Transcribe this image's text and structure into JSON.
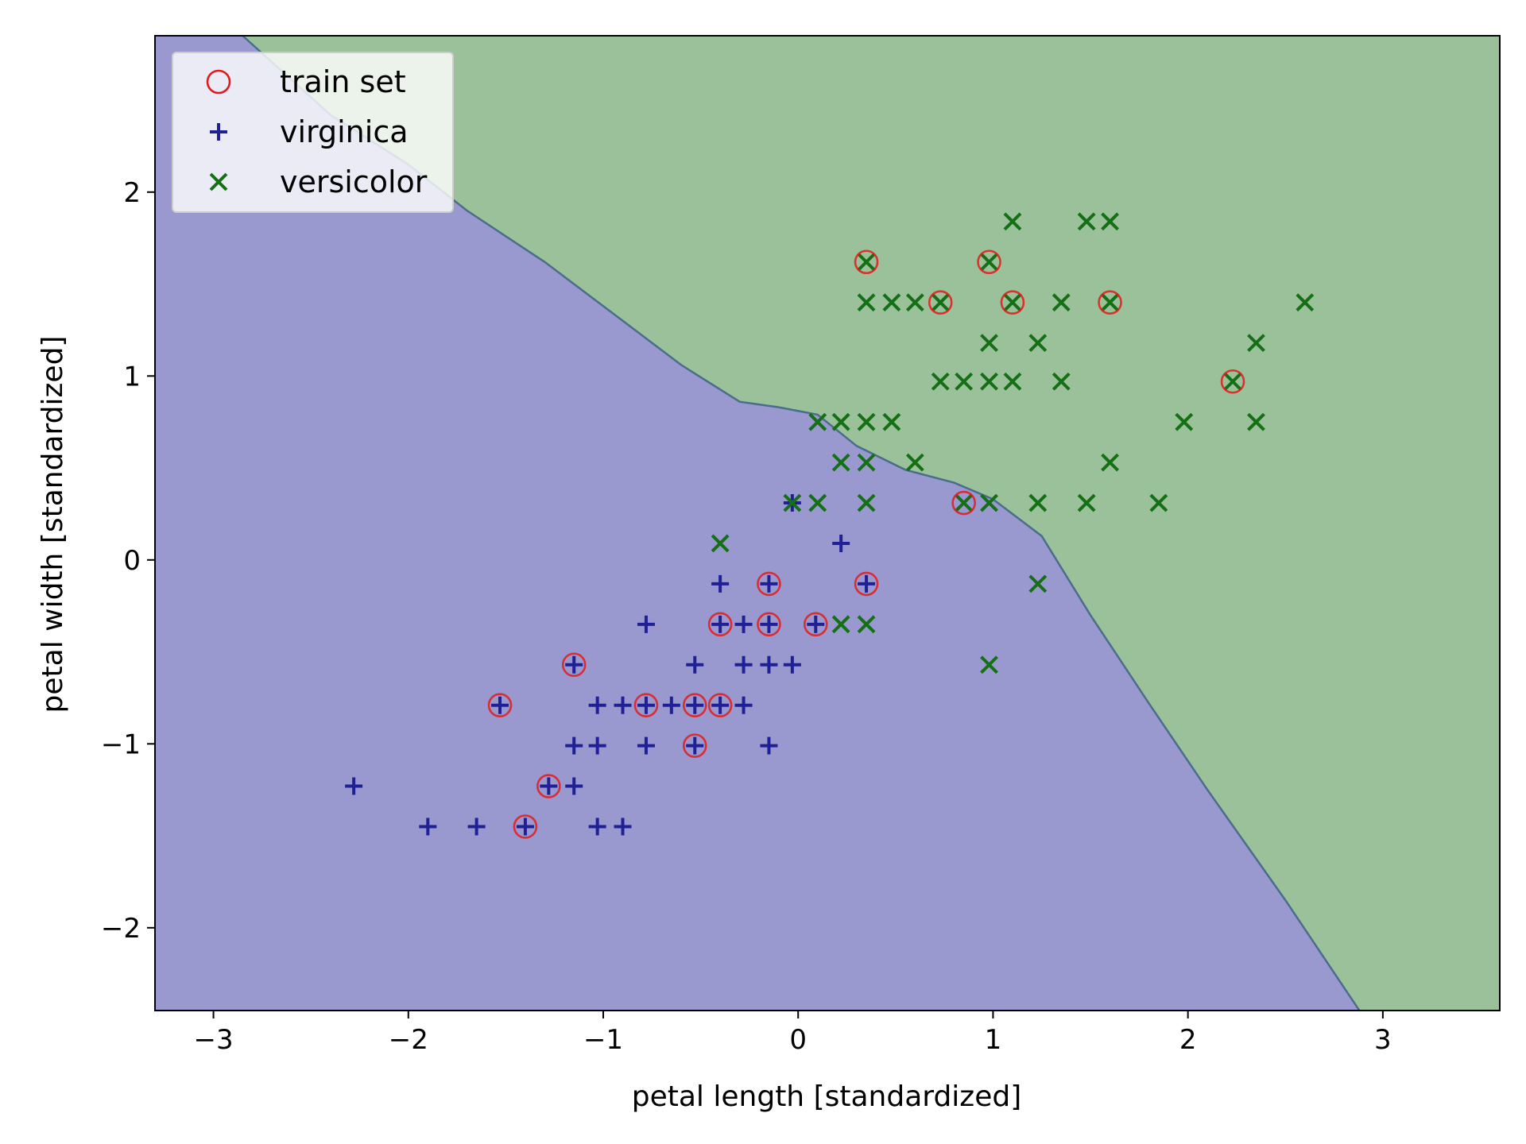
{
  "chart_data": {
    "type": "scatter",
    "xlabel": "petal length [standardized]",
    "ylabel": "petal width [standardized]",
    "xlim": [
      -3.3,
      3.6
    ],
    "ylim": [
      -2.45,
      2.85
    ],
    "xticks": [
      -3,
      -2,
      -1,
      0,
      1,
      2,
      3
    ],
    "yticks": [
      -2,
      -1,
      0,
      1,
      2
    ],
    "tick_labels_x": [
      "−3",
      "−2",
      "−1",
      "0",
      "1",
      "2",
      "3"
    ],
    "tick_labels_y": [
      "−2",
      "−1",
      "0",
      "1",
      "2"
    ],
    "grid": false,
    "legend_position": "top-left",
    "decision_regions": [
      {
        "class": "virginica",
        "color": "#9999cf",
        "boundary": [
          [
            -2.85,
            2.85
          ],
          [
            -2.4,
            2.42
          ],
          [
            -2.0,
            2.15
          ],
          [
            -1.7,
            1.9
          ],
          [
            -1.3,
            1.62
          ],
          [
            -0.9,
            1.3
          ],
          [
            -0.6,
            1.06
          ],
          [
            -0.3,
            0.86
          ],
          [
            -0.1,
            0.83
          ],
          [
            0.1,
            0.79
          ],
          [
            0.3,
            0.62
          ],
          [
            0.55,
            0.49
          ],
          [
            0.8,
            0.42
          ],
          [
            1.0,
            0.33
          ],
          [
            1.25,
            0.13
          ],
          [
            1.5,
            -0.3
          ],
          [
            1.8,
            -0.78
          ],
          [
            2.1,
            -1.25
          ],
          [
            2.5,
            -1.85
          ],
          [
            2.88,
            -2.45
          ]
        ]
      },
      {
        "class": "versicolor",
        "color": "#9ac19a"
      }
    ],
    "series": [
      {
        "name": "virginica",
        "marker": "+",
        "color": "#1f1f96",
        "points": [
          [
            -0.03,
            0.31
          ],
          [
            0.22,
            0.09
          ],
          [
            -0.4,
            -0.13
          ],
          [
            -0.15,
            -0.13
          ],
          [
            0.35,
            -0.13
          ],
          [
            -0.78,
            -0.35
          ],
          [
            -0.4,
            -0.35
          ],
          [
            -0.28,
            -0.35
          ],
          [
            -0.15,
            -0.35
          ],
          [
            0.09,
            -0.35
          ],
          [
            -1.15,
            -0.57
          ],
          [
            -0.53,
            -0.57
          ],
          [
            -0.28,
            -0.57
          ],
          [
            -0.15,
            -0.57
          ],
          [
            -0.03,
            -0.57
          ],
          [
            -1.53,
            -0.79
          ],
          [
            -1.03,
            -0.79
          ],
          [
            -0.9,
            -0.79
          ],
          [
            -0.78,
            -0.79
          ],
          [
            -0.65,
            -0.79
          ],
          [
            -0.53,
            -0.79
          ],
          [
            -0.4,
            -0.79
          ],
          [
            -0.28,
            -0.79
          ],
          [
            -1.15,
            -1.01
          ],
          [
            -1.03,
            -1.01
          ],
          [
            -0.78,
            -1.01
          ],
          [
            -0.53,
            -1.01
          ],
          [
            -0.15,
            -1.01
          ],
          [
            -2.28,
            -1.23
          ],
          [
            -1.28,
            -1.23
          ],
          [
            -1.15,
            -1.23
          ],
          [
            -1.9,
            -1.45
          ],
          [
            -1.65,
            -1.45
          ],
          [
            -1.4,
            -1.45
          ],
          [
            -1.03,
            -1.45
          ],
          [
            -0.9,
            -1.45
          ]
        ]
      },
      {
        "name": "versicolor",
        "marker": "x",
        "color": "#157015",
        "points": [
          [
            1.1,
            1.84
          ],
          [
            1.48,
            1.84
          ],
          [
            1.6,
            1.84
          ],
          [
            0.35,
            1.62
          ],
          [
            0.98,
            1.62
          ],
          [
            0.35,
            1.4
          ],
          [
            0.48,
            1.4
          ],
          [
            0.6,
            1.4
          ],
          [
            0.73,
            1.4
          ],
          [
            1.1,
            1.4
          ],
          [
            1.35,
            1.4
          ],
          [
            1.6,
            1.4
          ],
          [
            2.6,
            1.4
          ],
          [
            0.98,
            1.18
          ],
          [
            1.23,
            1.18
          ],
          [
            2.35,
            1.18
          ],
          [
            0.73,
            0.97
          ],
          [
            0.85,
            0.97
          ],
          [
            0.98,
            0.97
          ],
          [
            1.1,
            0.97
          ],
          [
            1.35,
            0.97
          ],
          [
            2.23,
            0.97
          ],
          [
            0.1,
            0.75
          ],
          [
            0.22,
            0.75
          ],
          [
            0.35,
            0.75
          ],
          [
            0.48,
            0.75
          ],
          [
            1.98,
            0.75
          ],
          [
            2.35,
            0.75
          ],
          [
            0.22,
            0.53
          ],
          [
            0.35,
            0.53
          ],
          [
            0.6,
            0.53
          ],
          [
            1.6,
            0.53
          ],
          [
            -0.03,
            0.31
          ],
          [
            0.1,
            0.31
          ],
          [
            0.35,
            0.31
          ],
          [
            0.85,
            0.31
          ],
          [
            0.98,
            0.31
          ],
          [
            1.23,
            0.31
          ],
          [
            1.48,
            0.31
          ],
          [
            1.85,
            0.31
          ],
          [
            -0.4,
            0.09
          ],
          [
            1.23,
            -0.13
          ],
          [
            0.22,
            -0.35
          ],
          [
            0.35,
            -0.35
          ],
          [
            0.98,
            -0.57
          ]
        ]
      },
      {
        "name": "train set",
        "marker": "o",
        "color": "#e41a1a",
        "points": [
          [
            0.35,
            1.62
          ],
          [
            0.98,
            1.62
          ],
          [
            0.73,
            1.4
          ],
          [
            1.1,
            1.4
          ],
          [
            1.6,
            1.4
          ],
          [
            2.23,
            0.97
          ],
          [
            0.85,
            0.31
          ],
          [
            -0.15,
            -0.13
          ],
          [
            0.35,
            -0.13
          ],
          [
            -0.4,
            -0.35
          ],
          [
            -0.15,
            -0.35
          ],
          [
            0.09,
            -0.35
          ],
          [
            -1.15,
            -0.57
          ],
          [
            -1.53,
            -0.79
          ],
          [
            -0.78,
            -0.79
          ],
          [
            -0.53,
            -0.79
          ],
          [
            -0.4,
            -0.79
          ],
          [
            -0.53,
            -1.01
          ],
          [
            -1.28,
            -1.23
          ],
          [
            -1.4,
            -1.45
          ]
        ]
      }
    ],
    "legend": [
      {
        "label": "train set",
        "marker": "o",
        "color": "#e41a1a"
      },
      {
        "label": "virginica",
        "marker": "+",
        "color": "#1f1f96"
      },
      {
        "label": "versicolor",
        "marker": "x",
        "color": "#157015"
      }
    ]
  }
}
